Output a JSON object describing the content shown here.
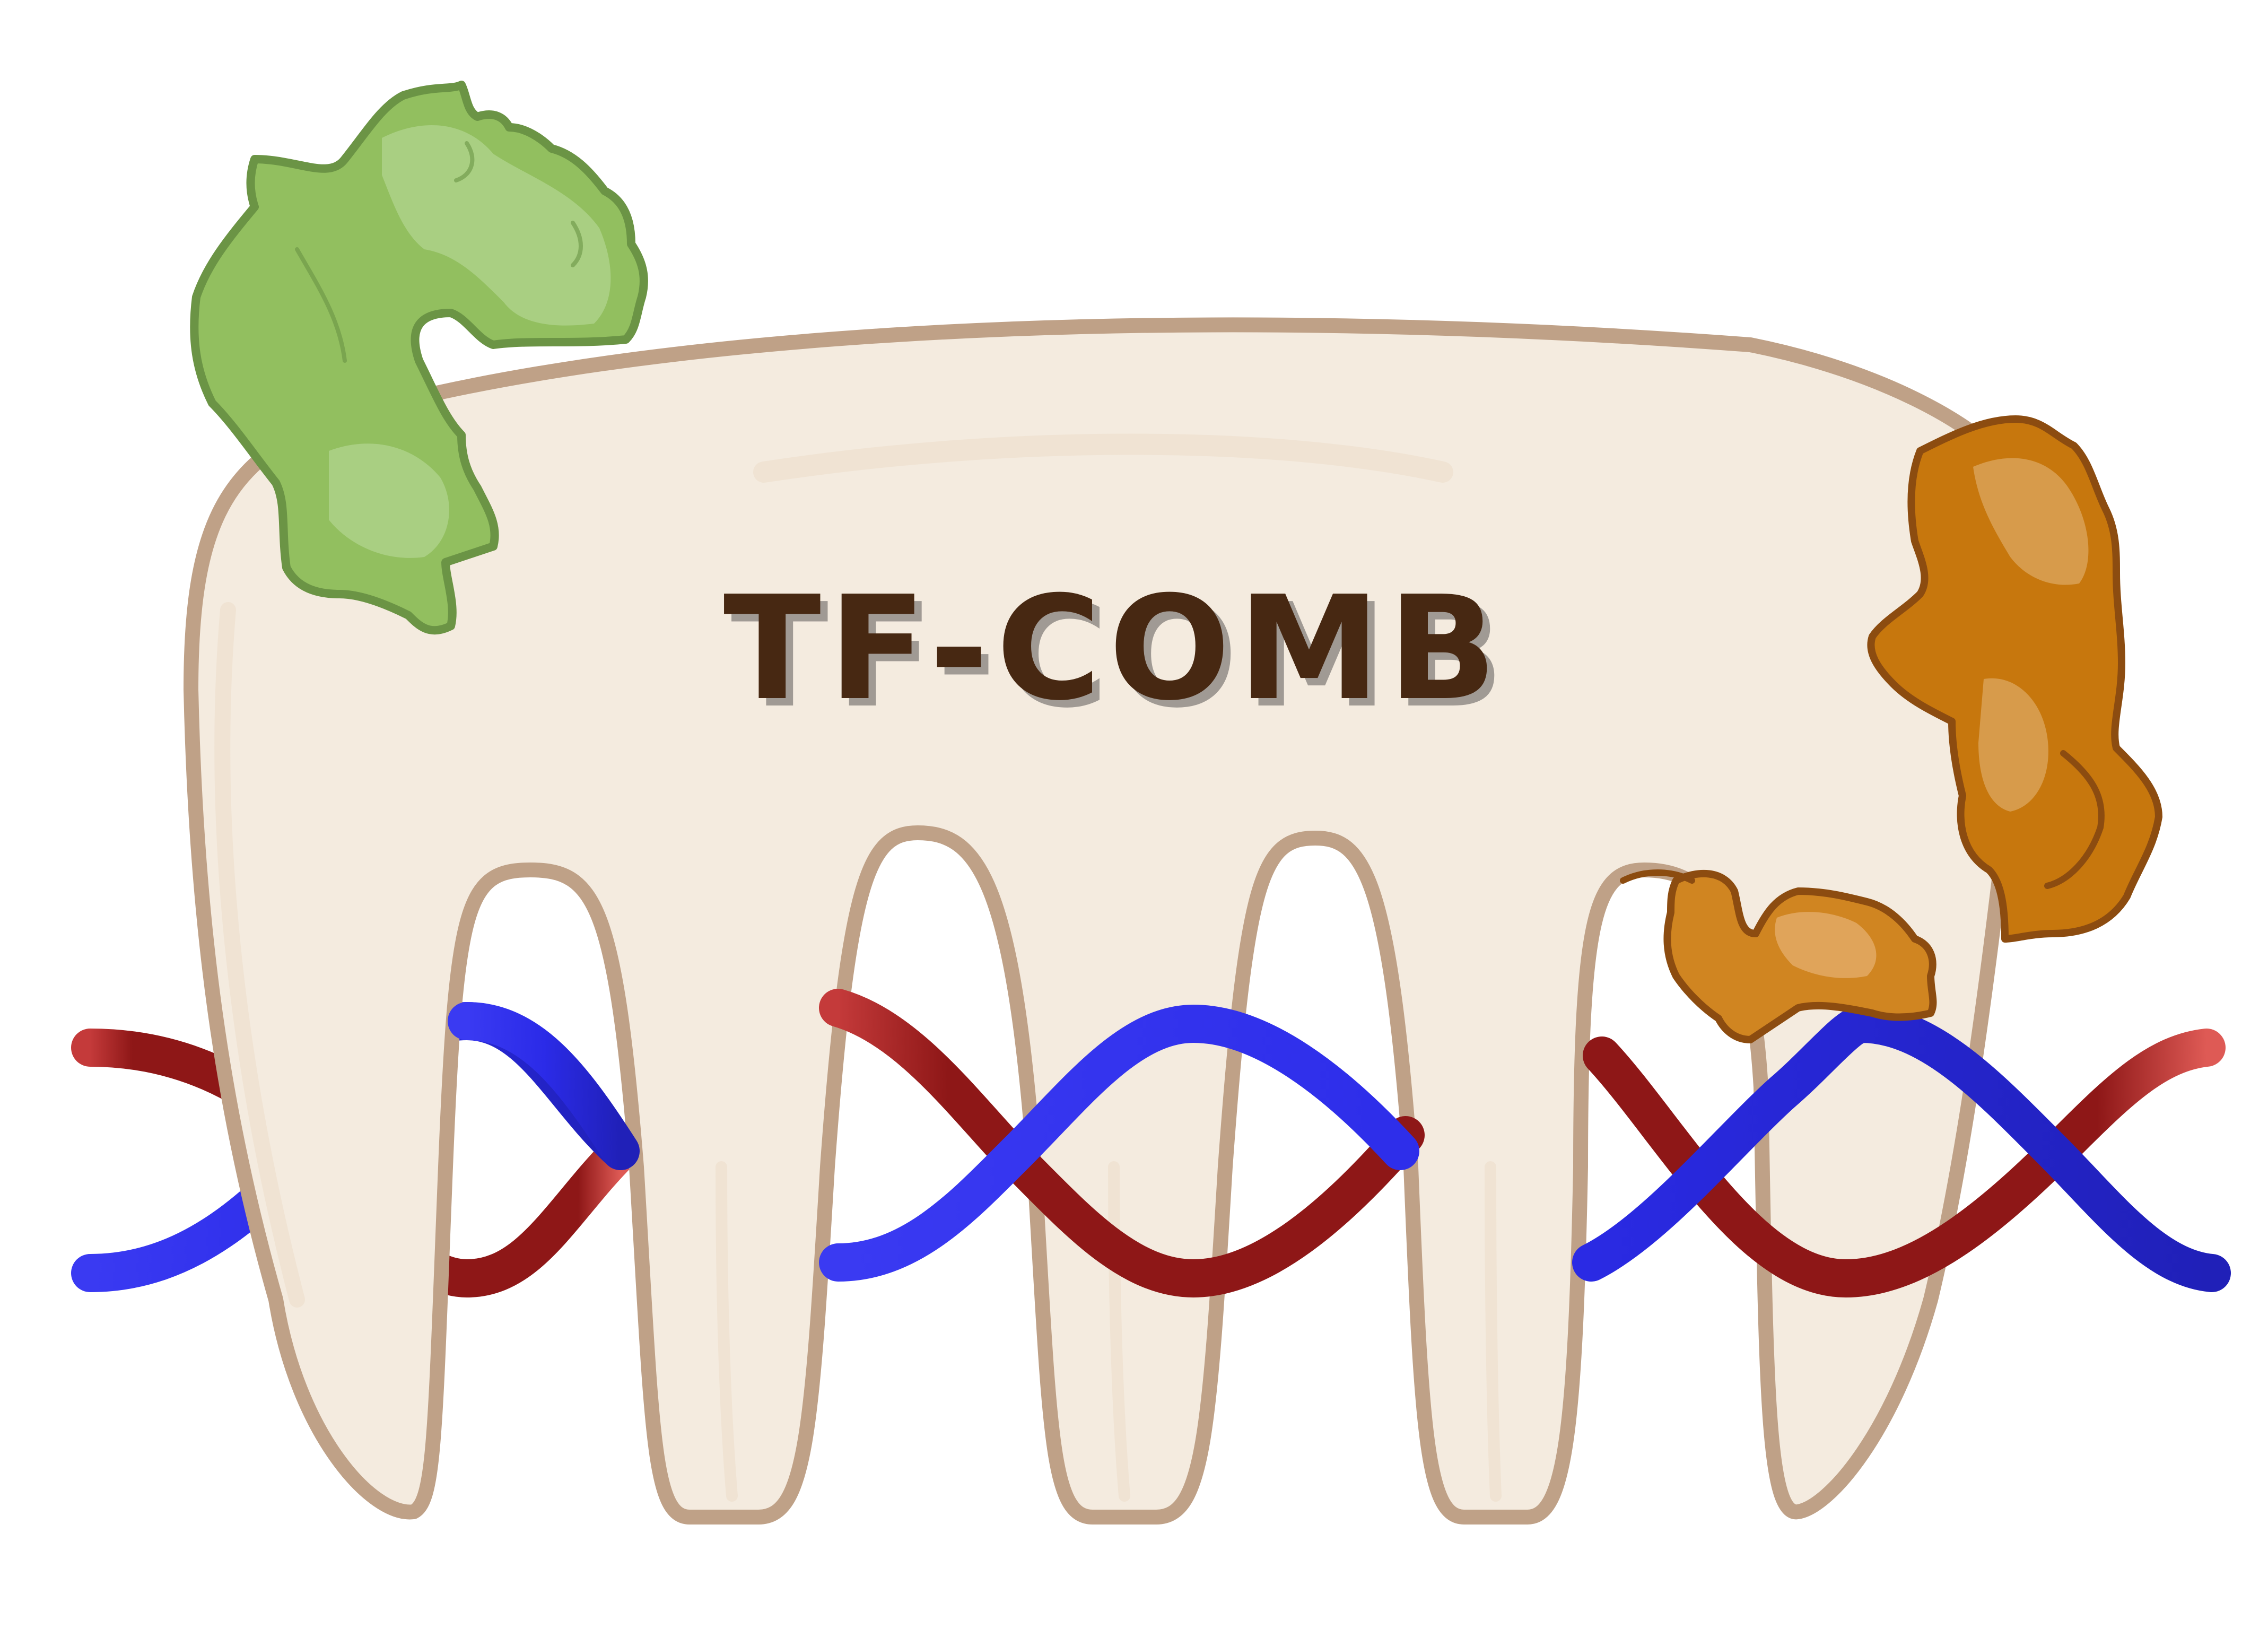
{
  "logo": {
    "title": "TF-COMB"
  },
  "colors": {
    "background": "#ffffff",
    "comb_fill": "#f4ebdf",
    "comb_outline": "#bfa187",
    "comb_inner_shade": "#efe2d2",
    "title_text": "#472812",
    "title_shadow": "#9e9a94",
    "dna_strand_red": "#9b1c1c",
    "dna_strand_red_end": "#d9534f",
    "dna_strand_blue": "#2828e6",
    "dna_strand_blue_end": "#4b4bff",
    "protein_green_fill": "#92bf5f",
    "protein_green_light": "#a9cf82",
    "protein_green_outline": "#6b9445",
    "protein_orange_fill": "#c7770d",
    "protein_orange_light": "#d79b4b",
    "protein_orange_outline": "#8c4c10"
  },
  "icons": [
    "comb-icon",
    "dna-double-helix-icon",
    "green-protein-icon",
    "orange-protein-large-icon",
    "orange-protein-small-icon"
  ]
}
